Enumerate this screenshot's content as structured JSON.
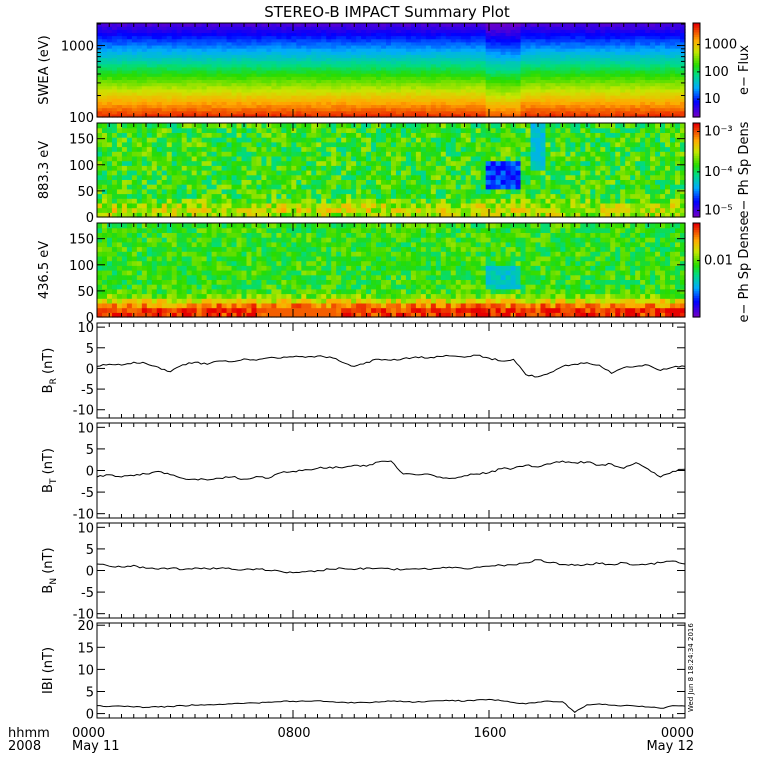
{
  "title": "STEREO-B IMPACT Summary Plot",
  "stamp": "Wed Jun  8 18:24:34 2016",
  "x_axis": {
    "row1_labels": [
      "hhmm",
      "0000",
      "0800",
      "1600",
      "0000"
    ],
    "row2_labels": [
      "2008",
      "May 11",
      "May 12"
    ]
  },
  "chart_data": [
    {
      "type": "heatmap",
      "ylabel": "SWEA (eV)",
      "yscale": "log",
      "ylim": [
        100,
        2000
      ],
      "ytick_labels": [
        "100",
        "1000"
      ],
      "colorbar": {
        "label": "e− Flux",
        "scale": "log",
        "range": [
          2,
          3000
        ],
        "tick_labels": [
          "10",
          "100",
          "1000"
        ]
      },
      "description_of_values": "flux increases toward low energy"
    },
    {
      "type": "heatmap",
      "ylabel": "883.3 eV",
      "ylim": [
        0,
        180
      ],
      "ytick_labels": [
        "0",
        "50",
        "100",
        "150"
      ],
      "colorbar": {
        "label": "e− Ph Sp Dens",
        "scale": "log",
        "range": [
          5e-06,
          0.0015
        ],
        "tick_labels": [
          "10⁻⁵",
          "10⁻⁴",
          "10⁻³"
        ]
      }
    },
    {
      "type": "heatmap",
      "ylabel": "436.5 eV",
      "ylim": [
        0,
        180
      ],
      "ytick_labels": [
        "0",
        "50",
        "100",
        "150"
      ],
      "colorbar": {
        "label": "e− Ph Sp Dense",
        "scale": "log",
        "range": [
          0.002,
          0.05
        ],
        "tick_labels": [
          "0.01"
        ]
      }
    },
    {
      "type": "line",
      "ylabel_main": "B",
      "ylabel_sub": "R",
      "ylabel_unit": " (nT)",
      "ylim": [
        -12,
        11
      ],
      "ytick_labels": [
        "-10",
        "-5",
        "0",
        "5",
        "10"
      ],
      "x_hours": [
        0,
        0.5,
        1,
        1.5,
        2,
        2.5,
        3,
        3.5,
        4,
        4.5,
        5,
        5.5,
        6,
        6.5,
        7,
        7.5,
        8,
        8.5,
        9,
        9.5,
        10,
        10.5,
        11,
        11.5,
        12,
        12.5,
        13,
        13.5,
        14,
        14.5,
        15,
        15.5,
        16,
        16.5,
        17,
        17.5,
        18,
        18.5,
        19,
        19.5,
        20,
        20.5,
        21,
        21.5,
        22,
        22.5,
        23,
        23.5,
        24
      ],
      "values": [
        0.5,
        1.0,
        0.8,
        1.5,
        1.2,
        0.3,
        -0.8,
        0.9,
        1.5,
        1.0,
        1.8,
        1.6,
        2.3,
        2.0,
        2.6,
        2.5,
        2.8,
        2.7,
        3.0,
        2.8,
        1.5,
        0.5,
        1.5,
        2.2,
        2.0,
        2.4,
        2.8,
        2.5,
        2.9,
        3.0,
        2.7,
        3.2,
        2.5,
        1.8,
        2.2,
        -1.5,
        -2.0,
        -1.0,
        0.5,
        1.0,
        1.4,
        0.8,
        -1.2,
        0.2,
        0.5,
        0.8,
        -0.5,
        0.3,
        0.5
      ]
    },
    {
      "type": "line",
      "ylabel_main": "B",
      "ylabel_sub": "T",
      "ylabel_unit": " (nT)",
      "ylim": [
        -11,
        11
      ],
      "ytick_labels": [
        "-10",
        "-5",
        "0",
        "5",
        "10"
      ],
      "x_hours": [
        0,
        0.5,
        1,
        1.5,
        2,
        2.5,
        3,
        3.5,
        4,
        4.5,
        5,
        5.5,
        6,
        6.5,
        7,
        7.5,
        8,
        8.5,
        9,
        9.5,
        10,
        10.5,
        11,
        11.5,
        12,
        12.5,
        13,
        13.5,
        14,
        14.5,
        15,
        15.5,
        16,
        16.5,
        17,
        17.5,
        18,
        18.5,
        19,
        19.5,
        20,
        20.5,
        21,
        21.5,
        22,
        22.5,
        23,
        23.5,
        24
      ],
      "values": [
        -1.5,
        -1.0,
        -1.5,
        -1.2,
        -0.8,
        -0.2,
        -1.0,
        -1.8,
        -2.0,
        -2.2,
        -1.8,
        -1.5,
        -2.0,
        -1.4,
        -1.8,
        -0.5,
        -0.2,
        0.2,
        0.5,
        0.8,
        0.6,
        1.2,
        1.0,
        2.0,
        2.2,
        -0.8,
        -1.0,
        -0.8,
        -1.5,
        -1.8,
        -1.2,
        -0.8,
        -0.5,
        0.4,
        0.5,
        1.2,
        0.8,
        1.5,
        2.2,
        1.8,
        2.0,
        1.2,
        1.5,
        0.5,
        1.8,
        0.3,
        -1.5,
        -0.2,
        0.3
      ]
    },
    {
      "type": "line",
      "ylabel_main": "B",
      "ylabel_sub": "N",
      "ylabel_unit": " (nT)",
      "ylim": [
        -11,
        11
      ],
      "ytick_labels": [
        "-10",
        "-5",
        "0",
        "5",
        "10"
      ],
      "x_hours": [
        0,
        0.5,
        1,
        1.5,
        2,
        2.5,
        3,
        3.5,
        4,
        4.5,
        5,
        5.5,
        6,
        6.5,
        7,
        7.5,
        8,
        8.5,
        9,
        9.5,
        10,
        10.5,
        11,
        11.5,
        12,
        12.5,
        13,
        13.5,
        14,
        14.5,
        15,
        15.5,
        16,
        16.5,
        17,
        17.5,
        18,
        18.5,
        19,
        19.5,
        20,
        20.5,
        21,
        21.5,
        22,
        22.5,
        23,
        23.5,
        24
      ],
      "values": [
        1.5,
        1.0,
        0.8,
        1.2,
        0.5,
        0.3,
        0.5,
        0.2,
        0.6,
        0.4,
        0.5,
        0.3,
        0.2,
        0.4,
        0.0,
        -0.2,
        -0.5,
        -0.3,
        0.0,
        0.3,
        0.5,
        0.2,
        0.6,
        0.5,
        0.3,
        0.2,
        0.4,
        0.3,
        0.5,
        0.6,
        0.4,
        0.8,
        1.0,
        1.2,
        1.3,
        1.8,
        2.5,
        1.8,
        1.4,
        1.2,
        1.5,
        1.6,
        1.4,
        1.8,
        1.3,
        1.5,
        1.8,
        2.2,
        1.5
      ]
    },
    {
      "type": "line",
      "ylabel_main": "IBI (nT)",
      "ylim": [
        -1,
        20.5
      ],
      "ytick_labels": [
        "0",
        "5",
        "10",
        "15",
        "20"
      ],
      "x_hours": [
        0,
        0.5,
        1,
        1.5,
        2,
        2.5,
        3,
        3.5,
        4,
        4.5,
        5,
        5.5,
        6,
        6.5,
        7,
        7.5,
        8,
        8.5,
        9,
        9.5,
        10,
        10.5,
        11,
        11.5,
        12,
        12.5,
        13,
        13.5,
        14,
        14.5,
        15,
        15.5,
        16,
        16.5,
        17,
        17.5,
        18,
        18.5,
        19,
        19.5,
        20,
        20.5,
        21,
        21.5,
        22,
        22.5,
        23,
        23.5,
        24
      ],
      "values": [
        1.8,
        1.6,
        1.7,
        1.5,
        1.4,
        1.5,
        1.6,
        1.8,
        1.9,
        2.0,
        2.1,
        2.2,
        2.3,
        2.4,
        2.6,
        2.7,
        2.8,
        2.8,
        2.9,
        2.7,
        2.6,
        2.4,
        2.5,
        2.6,
        2.8,
        2.7,
        2.6,
        2.8,
        2.9,
        3.0,
        2.8,
        3.1,
        3.2,
        2.9,
        2.5,
        2.2,
        2.6,
        2.8,
        2.7,
        0.3,
        2.0,
        2.2,
        1.9,
        1.8,
        1.7,
        1.5,
        1.2,
        1.8,
        1.7
      ]
    }
  ]
}
